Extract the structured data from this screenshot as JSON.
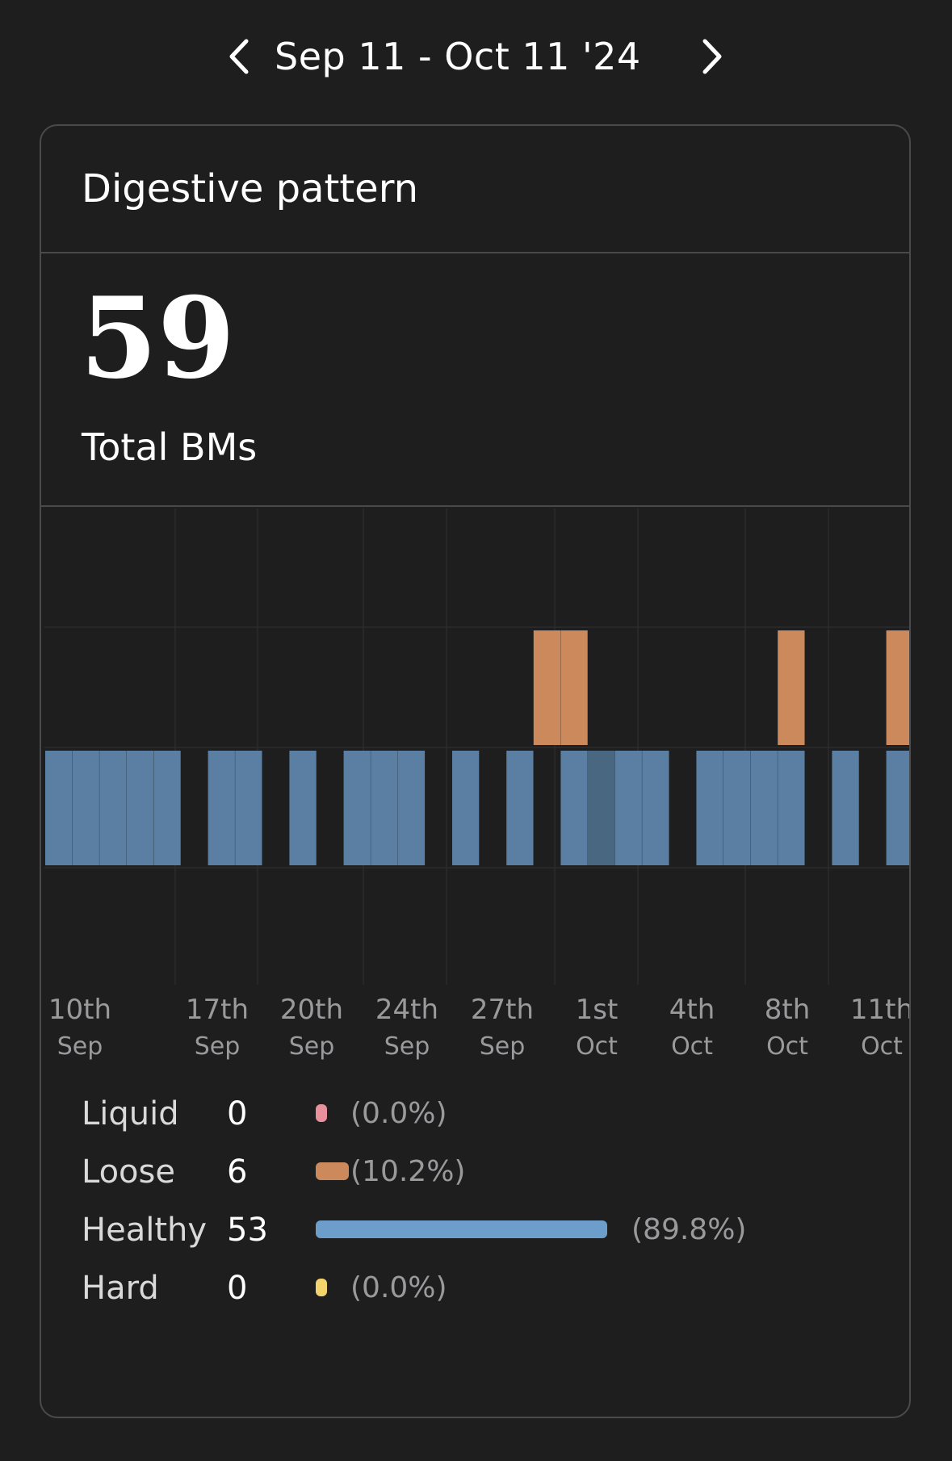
{
  "header": {
    "date_range": "Sep 11 - Oct 11 '24",
    "prev_icon": "chevron-left-icon",
    "next_icon": "chevron-right-icon"
  },
  "card": {
    "title": "Digestive pattern",
    "total_value": "59",
    "total_label": "Total BMs"
  },
  "colors": {
    "background": "#1e1e1f",
    "healthy": "#6d9ecb",
    "healthy_dark": "#5a7fa3",
    "healthy_darker": "#4a6781",
    "loose": "#cc8a5c",
    "liquid": "#e8919c",
    "hard": "#f3d36b"
  },
  "chart_data": {
    "type": "bar",
    "x_ticks": [
      {
        "day": "10th",
        "month": "Sep"
      },
      {
        "day": "17th",
        "month": "Sep"
      },
      {
        "day": "20th",
        "month": "Sep"
      },
      {
        "day": "24th",
        "month": "Sep"
      },
      {
        "day": "27th",
        "month": "Sep"
      },
      {
        "day": "1st",
        "month": "Oct"
      },
      {
        "day": "4th",
        "month": "Oct"
      },
      {
        "day": "8th",
        "month": "Oct"
      },
      {
        "day": "11th",
        "month": "Oct"
      }
    ],
    "days": [
      "Sep 11",
      "Sep 12",
      "Sep 13",
      "Sep 14",
      "Sep 15",
      "Sep 16",
      "Sep 17",
      "Sep 18",
      "Sep 19",
      "Sep 20",
      "Sep 21",
      "Sep 22",
      "Sep 23",
      "Sep 24",
      "Sep 25",
      "Sep 26",
      "Sep 27",
      "Sep 28",
      "Sep 29",
      "Sep 30",
      "Oct 1",
      "Oct 2",
      "Oct 3",
      "Oct 4",
      "Oct 5",
      "Oct 6",
      "Oct 7",
      "Oct 8",
      "Oct 9",
      "Oct 10",
      "Oct 11",
      "Oct 12"
    ],
    "healthy_shade": [
      1,
      2,
      1,
      1,
      2,
      0,
      1,
      1,
      0,
      1,
      0,
      2,
      1,
      2,
      0,
      1,
      0,
      1,
      0,
      1,
      3,
      1,
      1,
      0,
      1,
      1,
      1,
      1,
      0,
      2,
      0,
      2
    ],
    "series": [
      {
        "name": "Healthy",
        "values": [
          1,
          1,
          1,
          1,
          1,
          0,
          1,
          1,
          0,
          1,
          0,
          1,
          1,
          1,
          0,
          1,
          0,
          1,
          0,
          1,
          1,
          1,
          1,
          0,
          1,
          1,
          1,
          1,
          0,
          1,
          0,
          1
        ]
      },
      {
        "name": "Loose",
        "values": [
          0,
          0,
          0,
          0,
          0,
          0,
          0,
          0,
          0,
          0,
          0,
          0,
          0,
          0,
          0,
          0,
          0,
          0,
          1,
          1,
          0,
          0,
          0,
          0,
          0,
          0,
          0,
          1,
          0,
          0,
          0,
          1
        ]
      }
    ]
  },
  "legend": [
    {
      "name": "Liquid",
      "count": "0",
      "pct": "(0.0%)",
      "fraction": 0.0,
      "color": "#e8919c"
    },
    {
      "name": "Loose",
      "count": "6",
      "pct": "(10.2%)",
      "fraction": 0.102,
      "color": "#cc8a5c"
    },
    {
      "name": "Healthy",
      "count": "53",
      "pct": "(89.8%)",
      "fraction": 0.898,
      "color": "#6d9ecb"
    },
    {
      "name": "Hard",
      "count": "0",
      "pct": "(0.0%)",
      "fraction": 0.0,
      "color": "#f3d36b"
    }
  ]
}
